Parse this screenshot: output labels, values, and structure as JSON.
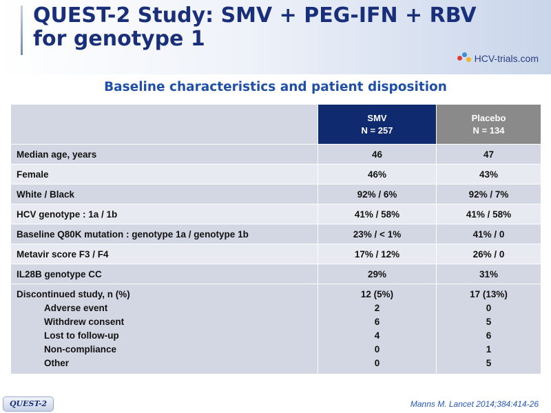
{
  "header": {
    "title_line1": "QUEST-2 Study: SMV + PEG-IFN + RBV",
    "title_line2": "for genotype 1",
    "logo_text": "HCV-trials.com"
  },
  "subtitle": "Baseline characteristics and patient disposition",
  "table": {
    "columns": [
      {
        "name": "SMV",
        "n": "N = 257"
      },
      {
        "name": "Placebo",
        "n": "N = 134"
      }
    ],
    "rows": [
      {
        "label": "Median age, years",
        "smv": "46",
        "placebo": "47"
      },
      {
        "label": "Female",
        "smv": "46%",
        "placebo": "43%"
      },
      {
        "label": "White / Black",
        "smv": "92% / 6%",
        "placebo": "92% / 7%"
      },
      {
        "label": "HCV genotype : 1a / 1b",
        "smv": "41% / 58%",
        "placebo": "41% / 58%"
      },
      {
        "label": "Baseline Q80K mutation : genotype 1a / genotype 1b",
        "smv": "23% / < 1%",
        "placebo": "41% / 0"
      },
      {
        "label": "Metavir score F3 / F4",
        "smv": "17% / 12%",
        "placebo": "26% / 0"
      },
      {
        "label": "IL28B genotype CC",
        "smv": "29%",
        "placebo": "31%"
      }
    ],
    "discontinued": {
      "label": "Discontinued study, n (%)",
      "smv": "12 (5%)",
      "placebo": "17 (13%)",
      "subrows": [
        {
          "label": "Adverse event",
          "smv": "2",
          "placebo": "0"
        },
        {
          "label": "Withdrew consent",
          "smv": "6",
          "placebo": "5"
        },
        {
          "label": "Lost to follow-up",
          "smv": "4",
          "placebo": "6"
        },
        {
          "label": "Non-compliance",
          "smv": "0",
          "placebo": "1"
        },
        {
          "label": "Other",
          "smv": "0",
          "placebo": "5"
        }
      ]
    }
  },
  "footer": {
    "badge": "QUEST-2",
    "citation": "Manns M. Lancet 2014;384:414-26"
  },
  "colors": {
    "title": "#1a2f7a",
    "subtitle": "#1f4fa6",
    "smv_header": "#0f2a6e",
    "placebo_header": "#8a8a8a",
    "row_dark": "#d3d7e3",
    "row_light": "#e8eaf1"
  }
}
